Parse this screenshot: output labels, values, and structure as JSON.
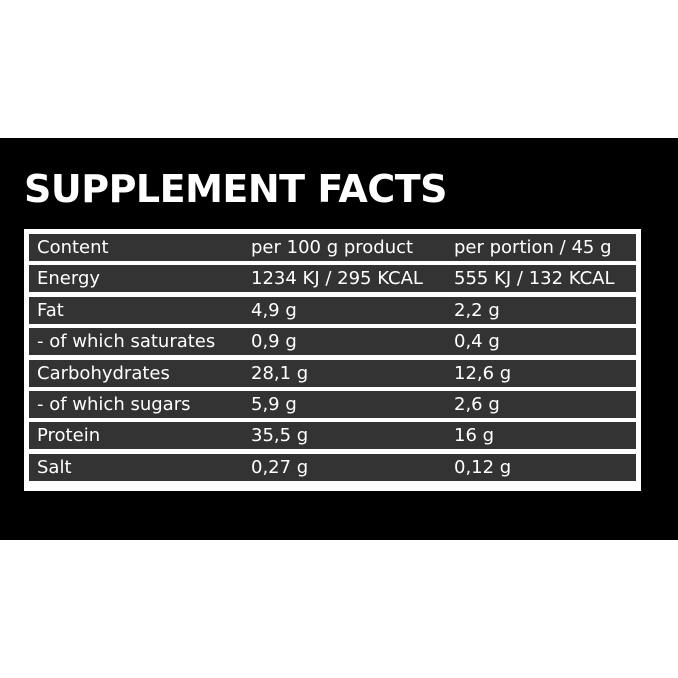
{
  "title": "SUPPLEMENT FACTS",
  "table": {
    "rows": [
      [
        "Content",
        "per 100 g product",
        "per portion / 45 g"
      ],
      [
        "Energy",
        "1234 KJ / 295 KCAL",
        "555 KJ / 132 KCAL"
      ],
      [
        "Fat",
        "4,9 g",
        "2,2 g"
      ],
      [
        "- of which saturates",
        "0,9 g",
        "0,4 g"
      ],
      [
        "Carbohydrates",
        "28,1 g",
        "12,6 g"
      ],
      [
        "- of which sugars",
        "5,9 g",
        "2,6 g"
      ],
      [
        "Protein",
        "35,5 g",
        "16 g"
      ],
      [
        "Salt",
        "0,27 g",
        "0,12 g"
      ]
    ]
  }
}
